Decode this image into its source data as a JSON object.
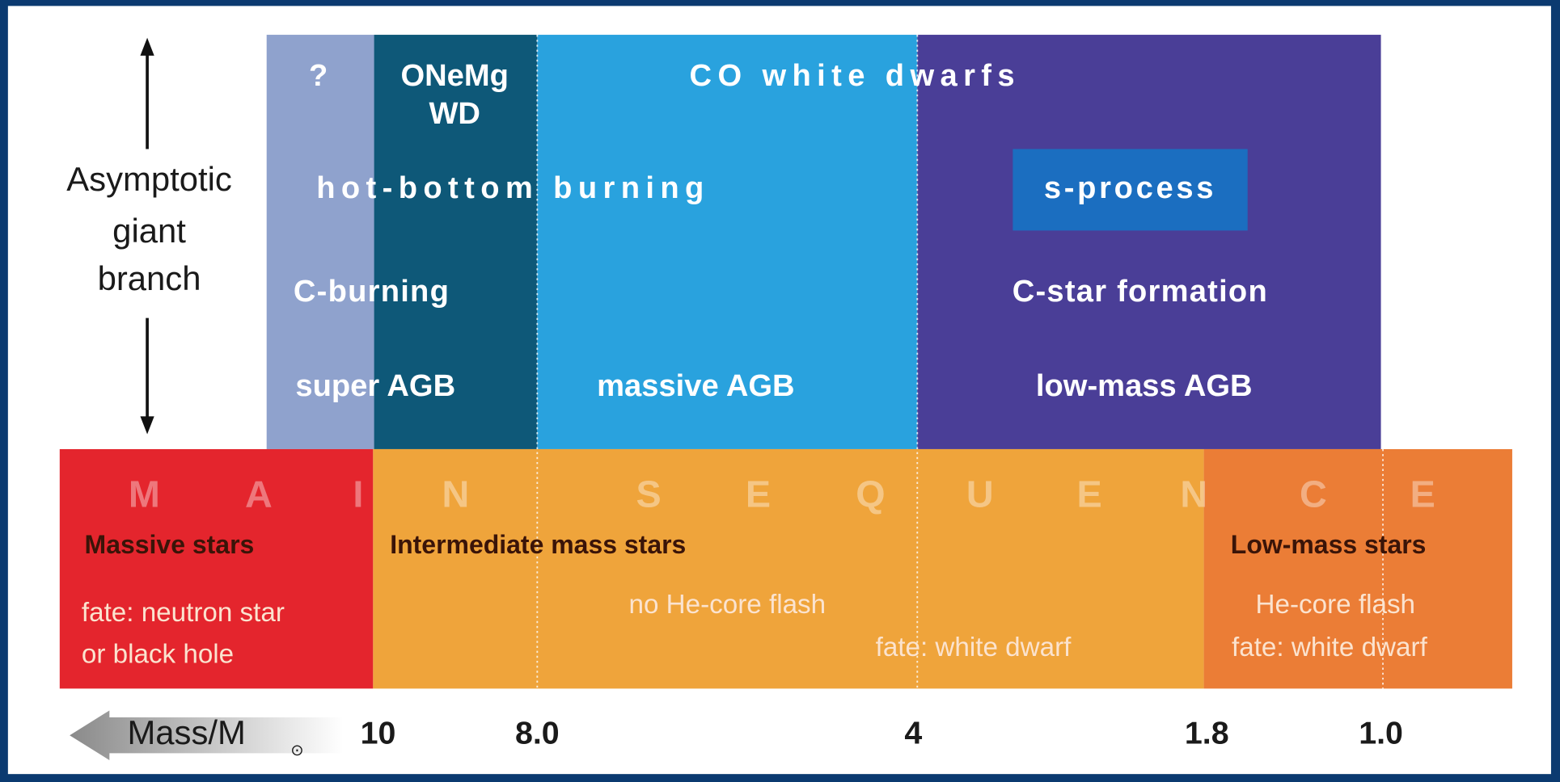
{
  "side_label": [
    "Asymptotic",
    "giant",
    "branch"
  ],
  "agb": {
    "unknown": "?",
    "onemg": [
      "ONeMg",
      "WD"
    ],
    "co": "CO white dwarfs",
    "hbb": "hot-bottom burning",
    "s_process": "s-process",
    "c_burning": "C-burning",
    "c_star": "C-star formation",
    "super": "super AGB",
    "massive": "massive AGB",
    "low_mass": "low-mass AGB"
  },
  "main_sequence": {
    "letters": [
      "M",
      "A",
      "I",
      "N",
      "S",
      "E",
      "Q",
      "U",
      "E",
      "N",
      "C",
      "E"
    ],
    "massive": {
      "title": "Massive stars",
      "fate": [
        "fate: neutron star",
        "or black hole"
      ]
    },
    "intermediate": {
      "title": "Intermediate mass stars",
      "note": "no He-core flash",
      "fate": "fate: white dwarf"
    },
    "low": {
      "title": "Low-mass stars",
      "note": "He-core flash",
      "fate": "fate: white dwarf"
    }
  },
  "axis": {
    "label": "Mass/M",
    "sun": "⊙",
    "ticks": [
      "10",
      "8.0",
      "4",
      "1.8",
      "1.0"
    ]
  }
}
